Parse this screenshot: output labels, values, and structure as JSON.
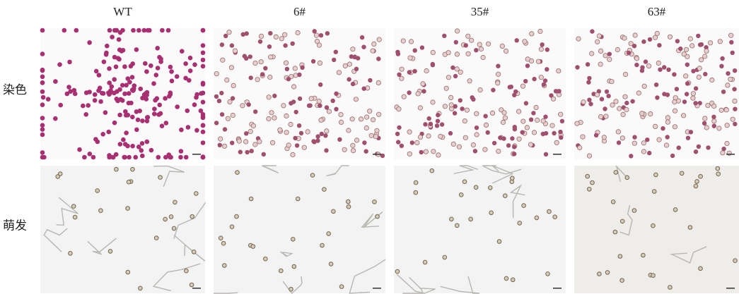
{
  "columns": [
    "WT",
    "6#",
    "35#",
    "63#"
  ],
  "rows": [
    "染色",
    "萌发"
  ]
}
